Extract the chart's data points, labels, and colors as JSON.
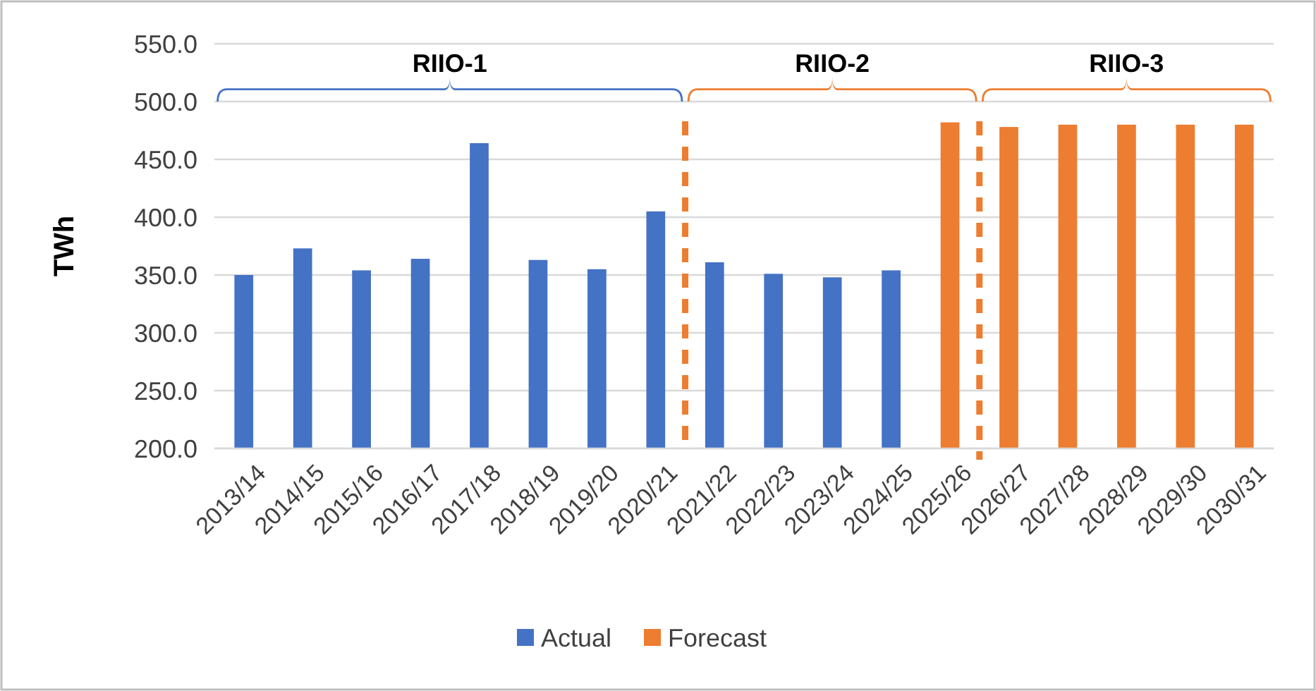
{
  "chart_data": {
    "type": "bar",
    "ylabel": "TWh",
    "categories": [
      "2013/14",
      "2014/15",
      "2015/16",
      "2016/17",
      "2017/18",
      "2018/19",
      "2019/20",
      "2020/21",
      "2021/22",
      "2022/23",
      "2023/24",
      "2024/25",
      "2025/26",
      "2026/27",
      "2027/28",
      "2028/29",
      "2029/30",
      "2030/31"
    ],
    "series": [
      {
        "name": "Actual",
        "color": "#4472c4",
        "values": [
          350,
          373,
          354,
          364,
          464,
          363,
          355,
          405,
          361,
          351,
          348,
          354,
          null,
          null,
          null,
          null,
          null,
          null
        ]
      },
      {
        "name": "Forecast",
        "color": "#ed7d31",
        "values": [
          null,
          null,
          null,
          null,
          null,
          null,
          null,
          null,
          null,
          null,
          null,
          null,
          482,
          478,
          480,
          480,
          480,
          480
        ]
      }
    ],
    "ylim": [
      200,
      550
    ],
    "yticks": [
      {
        "value": 200,
        "label": "200.0"
      },
      {
        "value": 250,
        "label": "250.0"
      },
      {
        "value": 300,
        "label": "300.0"
      },
      {
        "value": 350,
        "label": "350.0"
      },
      {
        "value": 400,
        "label": "400.0"
      },
      {
        "value": 450,
        "label": "450.0"
      },
      {
        "value": 500,
        "label": "500.0"
      },
      {
        "value": 550,
        "label": "550.0"
      }
    ],
    "grid": "y",
    "legend": "bottom",
    "annotations": [
      "RIIO-1",
      "RIIO-2",
      "RIIO-3"
    ]
  }
}
